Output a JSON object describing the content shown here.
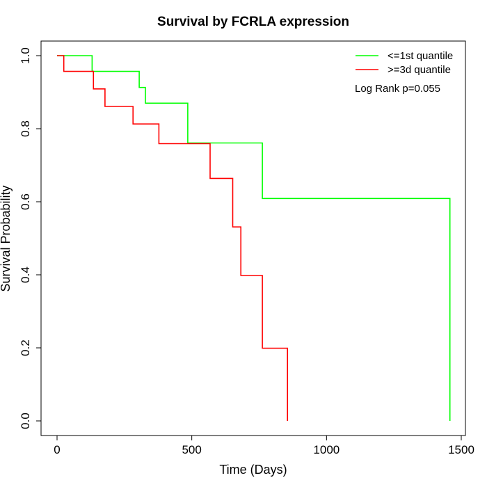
{
  "chart_data": {
    "type": "line",
    "title": "Survival by FCRLA expression",
    "xlabel": "Time (Days)",
    "ylabel": "Survival Probability",
    "xlim": [
      0,
      1500
    ],
    "ylim": [
      0,
      1.0
    ],
    "x_ticks": [
      0,
      500,
      1000,
      1500
    ],
    "x_tick_labels": [
      "0",
      "500",
      "1000",
      "1500"
    ],
    "y_ticks": [
      0,
      0.2,
      0.4,
      0.6,
      0.8,
      1.0
    ],
    "y_tick_labels": [
      "0.0",
      "0.2",
      "0.4",
      "0.6",
      "0.8",
      "1.0"
    ],
    "grid": false,
    "legend_position": "top-right",
    "annotation": "Log Rank p=0.055",
    "series": [
      {
        "name": "<=1st quantile",
        "color": "#00ff00",
        "step": true,
        "points": [
          [
            0,
            1.0
          ],
          [
            130,
            1.0
          ],
          [
            130,
            0.957
          ],
          [
            305,
            0.957
          ],
          [
            305,
            0.913
          ],
          [
            328,
            0.913
          ],
          [
            328,
            0.87
          ],
          [
            485,
            0.87
          ],
          [
            485,
            0.761
          ],
          [
            762,
            0.761
          ],
          [
            762,
            0.609
          ],
          [
            1458,
            0.609
          ],
          [
            1458,
            0.0
          ]
        ]
      },
      {
        "name": ">=3d quantile",
        "color": "#ff0000",
        "step": true,
        "points": [
          [
            0,
            1.0
          ],
          [
            25,
            1.0
          ],
          [
            25,
            0.957
          ],
          [
            135,
            0.957
          ],
          [
            135,
            0.909
          ],
          [
            178,
            0.909
          ],
          [
            178,
            0.861
          ],
          [
            282,
            0.861
          ],
          [
            282,
            0.813
          ],
          [
            378,
            0.813
          ],
          [
            378,
            0.759
          ],
          [
            568,
            0.759
          ],
          [
            568,
            0.664
          ],
          [
            652,
            0.664
          ],
          [
            652,
            0.531
          ],
          [
            682,
            0.531
          ],
          [
            682,
            0.398
          ],
          [
            762,
            0.398
          ],
          [
            762,
            0.199
          ],
          [
            855,
            0.199
          ],
          [
            855,
            0.0
          ]
        ]
      }
    ]
  }
}
